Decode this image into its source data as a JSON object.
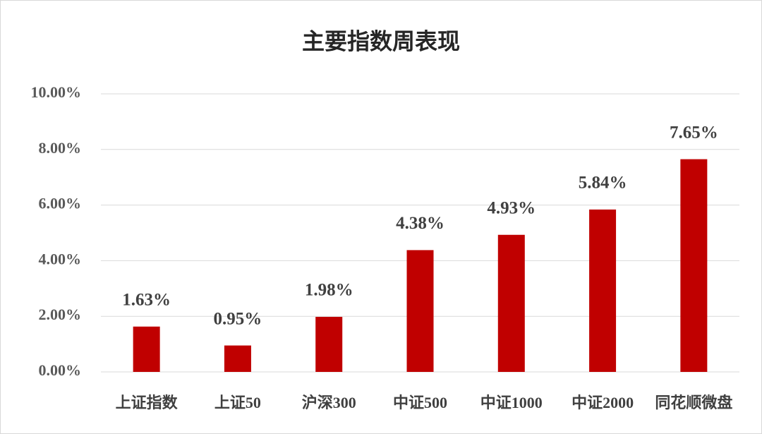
{
  "chart_data": {
    "type": "bar",
    "title": "主要指数周表现",
    "categories": [
      "上证指数",
      "上证50",
      "沪深300",
      "中证500",
      "中证1000",
      "中证2000",
      "同花顺微盘"
    ],
    "values": [
      1.63,
      0.95,
      1.98,
      4.38,
      4.93,
      5.84,
      7.65
    ],
    "value_labels": [
      "1.63%",
      "0.95%",
      "1.98%",
      "4.38%",
      "4.93%",
      "5.84%",
      "7.65%"
    ],
    "color": "#c00000",
    "ylim": [
      0,
      10
    ],
    "yticks": [
      {
        "value": 0,
        "label": "0.00%"
      },
      {
        "value": 2,
        "label": "2.00%"
      },
      {
        "value": 4,
        "label": "4.00%"
      },
      {
        "value": 6,
        "label": "6.00%"
      },
      {
        "value": 8,
        "label": "8.00%"
      },
      {
        "value": 10,
        "label": "10.00%"
      }
    ],
    "grid": true
  }
}
